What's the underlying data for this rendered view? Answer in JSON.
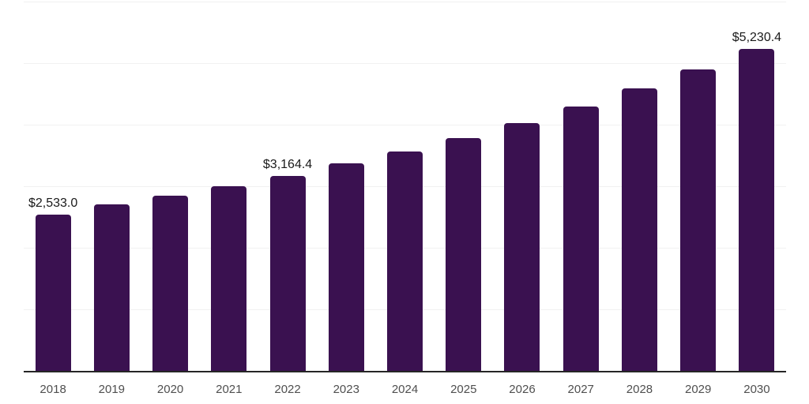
{
  "chart_data": {
    "type": "bar",
    "title": "",
    "xlabel": "",
    "ylabel": "",
    "categories": [
      "2018",
      "2019",
      "2020",
      "2021",
      "2022",
      "2023",
      "2024",
      "2025",
      "2026",
      "2027",
      "2028",
      "2029",
      "2030"
    ],
    "values": [
      2533.0,
      2710,
      2845,
      3000,
      3164.4,
      3370,
      3565,
      3780,
      4025,
      4295,
      4590,
      4895,
      5230.4
    ],
    "data_labels": [
      "$2,533.0",
      null,
      null,
      null,
      "$3,164.4",
      null,
      null,
      null,
      null,
      null,
      null,
      null,
      "$5,230.4"
    ],
    "ylim": [
      0,
      6000
    ],
    "gridline_step": 1000,
    "grid": true,
    "legend": false,
    "colors": {
      "bar": "#3a1150",
      "gridline": "#f1f1f1",
      "axis_line": "#262626",
      "data_label_text": "#1a1a1a",
      "tick_text": "#4f4f4f",
      "background": "#ffffff"
    }
  }
}
